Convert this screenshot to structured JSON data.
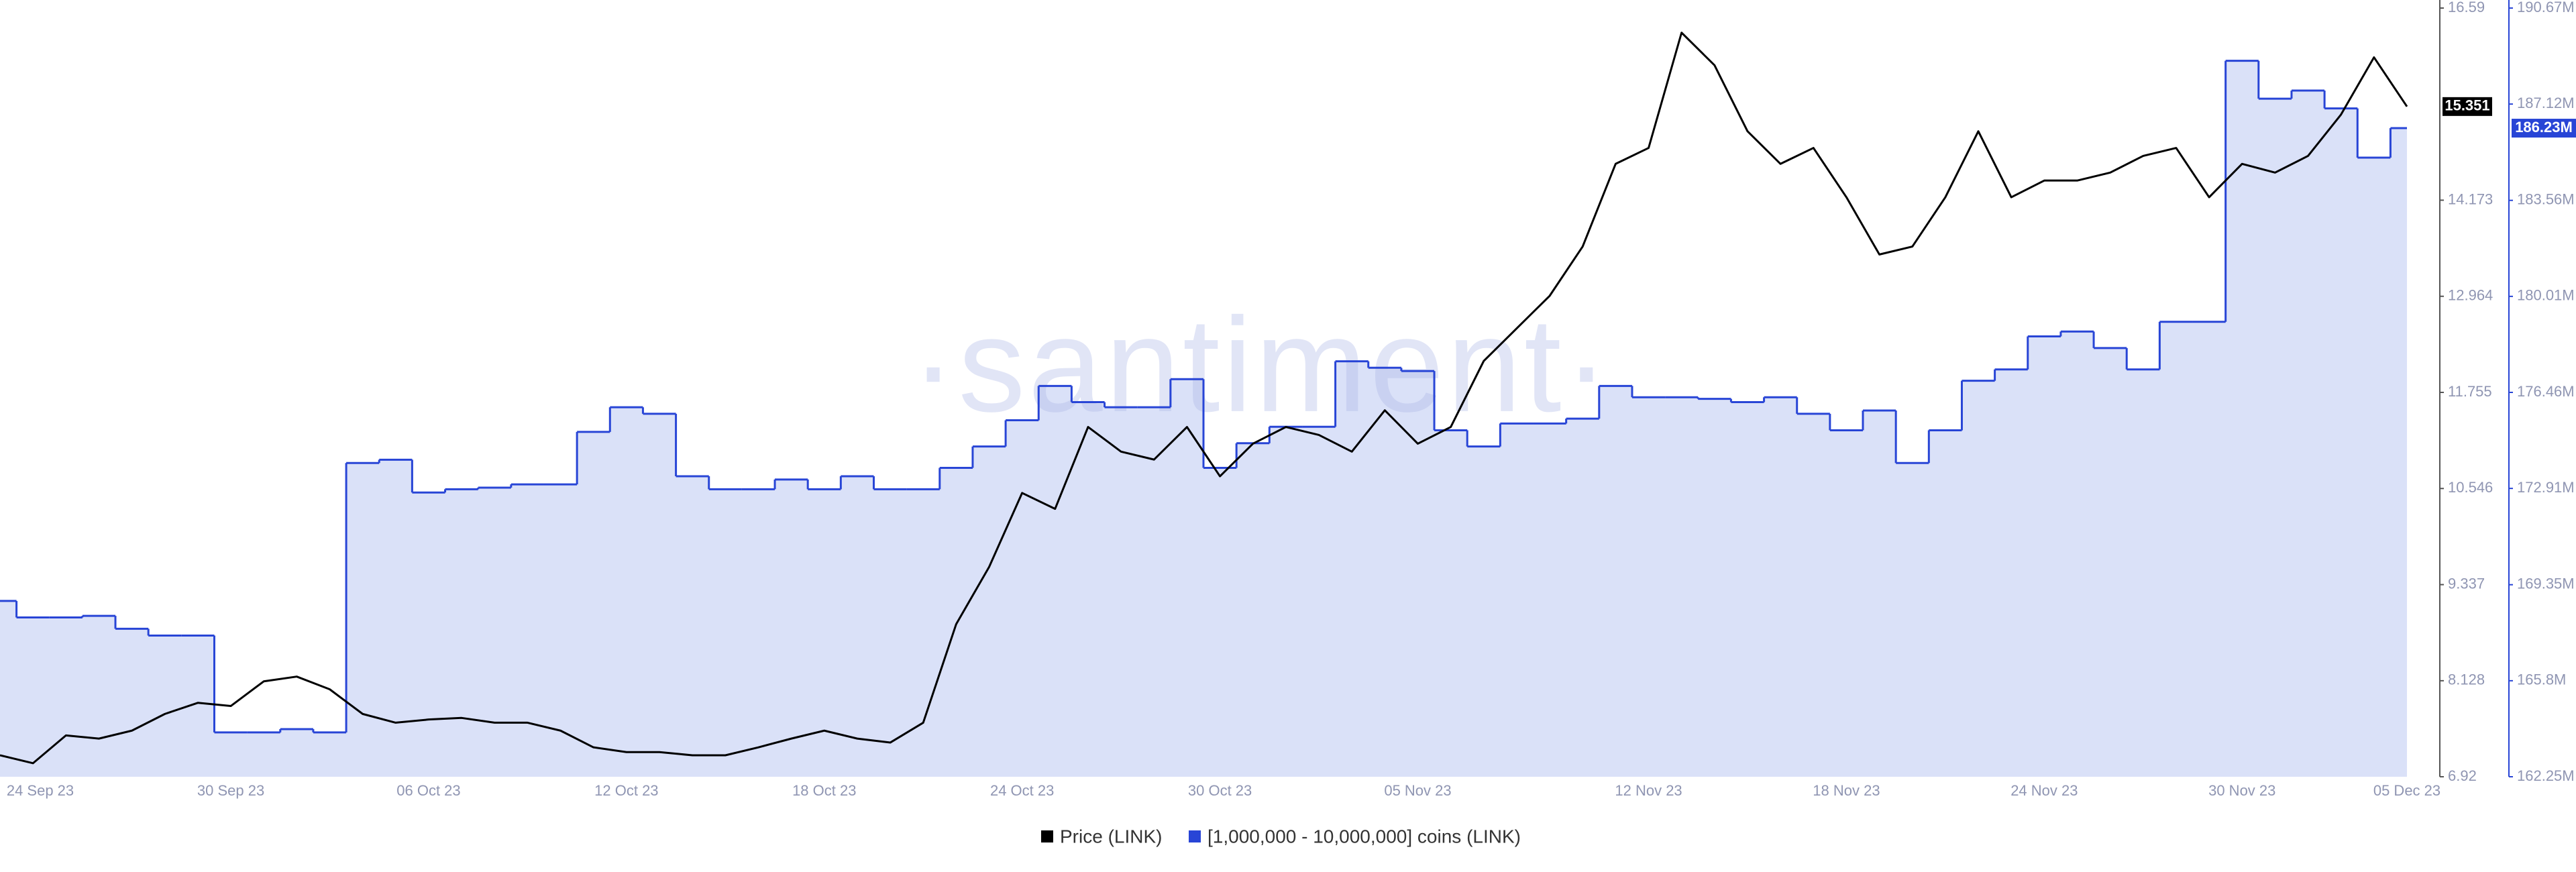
{
  "chart_data": {
    "type": "line",
    "watermark": "·santiment·",
    "x": [
      "2023-09-23",
      "2023-09-24",
      "2023-09-25",
      "2023-09-26",
      "2023-09-27",
      "2023-09-28",
      "2023-09-29",
      "2023-09-30",
      "2023-10-01",
      "2023-10-02",
      "2023-10-03",
      "2023-10-04",
      "2023-10-05",
      "2023-10-06",
      "2023-10-07",
      "2023-10-08",
      "2023-10-09",
      "2023-10-10",
      "2023-10-11",
      "2023-10-12",
      "2023-10-13",
      "2023-10-14",
      "2023-10-15",
      "2023-10-16",
      "2023-10-17",
      "2023-10-18",
      "2023-10-19",
      "2023-10-20",
      "2023-10-21",
      "2023-10-22",
      "2023-10-23",
      "2023-10-24",
      "2023-10-25",
      "2023-10-26",
      "2023-10-27",
      "2023-10-28",
      "2023-10-29",
      "2023-10-30",
      "2023-10-31",
      "2023-11-01",
      "2023-11-02",
      "2023-11-03",
      "2023-11-04",
      "2023-11-05",
      "2023-11-06",
      "2023-11-07",
      "2023-11-08",
      "2023-11-09",
      "2023-11-10",
      "2023-11-11",
      "2023-11-12",
      "2023-11-13",
      "2023-11-14",
      "2023-11-15",
      "2023-11-16",
      "2023-11-17",
      "2023-11-18",
      "2023-11-19",
      "2023-11-20",
      "2023-11-21",
      "2023-11-22",
      "2023-11-23",
      "2023-11-24",
      "2023-11-25",
      "2023-11-26",
      "2023-11-27",
      "2023-11-28",
      "2023-11-29",
      "2023-11-30",
      "2023-12-01",
      "2023-12-02",
      "2023-12-03",
      "2023-12-04",
      "2023-12-05"
    ],
    "series": [
      {
        "name": "Price (LINK)",
        "color": "#000000",
        "axis": "y",
        "last_label": "15.351",
        "values": [
          7.19,
          7.09,
          7.44,
          7.4,
          7.5,
          7.71,
          7.85,
          7.81,
          8.12,
          8.18,
          8.02,
          7.71,
          7.6,
          7.64,
          7.66,
          7.6,
          7.6,
          7.5,
          7.29,
          7.23,
          7.23,
          7.19,
          7.19,
          7.29,
          7.4,
          7.5,
          7.4,
          7.35,
          7.6,
          8.84,
          9.56,
          10.49,
          10.29,
          11.32,
          11.01,
          10.91,
          11.32,
          10.7,
          11.11,
          11.32,
          11.22,
          11.01,
          11.53,
          11.11,
          11.32,
          12.15,
          12.56,
          12.97,
          13.59,
          14.63,
          14.83,
          16.28,
          15.87,
          15.04,
          14.63,
          14.83,
          14.21,
          13.49,
          13.59,
          14.21,
          15.04,
          14.21,
          14.42,
          14.42,
          14.52,
          14.73,
          14.83,
          14.21,
          14.63,
          14.52,
          14.73,
          15.25,
          15.97,
          15.351
        ]
      },
      {
        "name": "[1,000,000 - 10,000,000] coins (LINK)",
        "color": "#2845d6",
        "area_color": "#dae1f8",
        "axis": "y2",
        "last_label": "186.23M",
        "values": [
          168750000,
          168140000,
          168140000,
          168200000,
          167720000,
          167470000,
          167470000,
          163890000,
          163890000,
          164010000,
          163890000,
          173850000,
          173970000,
          172760000,
          172880000,
          172940000,
          173060000,
          173060000,
          175000000,
          175910000,
          175670000,
          173360000,
          172880000,
          172880000,
          173240000,
          172880000,
          173360000,
          172880000,
          172880000,
          173670000,
          174460000,
          175430000,
          176700000,
          176100000,
          175910000,
          175910000,
          176950000,
          173670000,
          174580000,
          175190000,
          175190000,
          177610000,
          177370000,
          177250000,
          175060000,
          174460000,
          175310000,
          175310000,
          175490000,
          176700000,
          176280000,
          176280000,
          176220000,
          176100000,
          176280000,
          175670000,
          175060000,
          175790000,
          173850000,
          175060000,
          176890000,
          177310000,
          178530000,
          178710000,
          178100000,
          177310000,
          179070000,
          179070000,
          188720000,
          187320000,
          187620000,
          186960000,
          185140000,
          186230000
        ]
      }
    ],
    "xticks": [
      {
        "value": "2023-09-24",
        "label": "24 Sep 23"
      },
      {
        "value": "2023-09-30",
        "label": "30 Sep 23"
      },
      {
        "value": "2023-10-06",
        "label": "06 Oct 23"
      },
      {
        "value": "2023-10-12",
        "label": "12 Oct 23"
      },
      {
        "value": "2023-10-18",
        "label": "18 Oct 23"
      },
      {
        "value": "2023-10-24",
        "label": "24 Oct 23"
      },
      {
        "value": "2023-10-30",
        "label": "30 Oct 23"
      },
      {
        "value": "2023-11-05",
        "label": "05 Nov 23"
      },
      {
        "value": "2023-11-12",
        "label": "12 Nov 23"
      },
      {
        "value": "2023-11-18",
        "label": "18 Nov 23"
      },
      {
        "value": "2023-11-24",
        "label": "24 Nov 23"
      },
      {
        "value": "2023-11-30",
        "label": "30 Nov 23"
      },
      {
        "value": "2023-12-05",
        "label": "05 Dec 23"
      }
    ],
    "ylim": [
      6.92,
      16.59
    ],
    "yticks": [
      6.92,
      8.128,
      9.337,
      10.546,
      11.755,
      12.964,
      14.173,
      16.59
    ],
    "y2lim": [
      162250000,
      190670000
    ],
    "y2ticks": [
      {
        "value": 162250000,
        "label": "162.25M"
      },
      {
        "value": 165800000,
        "label": "165.8M"
      },
      {
        "value": 169350000,
        "label": "169.35M"
      },
      {
        "value": 172910000,
        "label": "172.91M"
      },
      {
        "value": 176460000,
        "label": "176.46M"
      },
      {
        "value": 180010000,
        "label": "180.01M"
      },
      {
        "value": 183560000,
        "label": "183.56M"
      },
      {
        "value": 187120000,
        "label": "187.12M"
      },
      {
        "value": 190670000,
        "label": "190.67M"
      }
    ]
  }
}
